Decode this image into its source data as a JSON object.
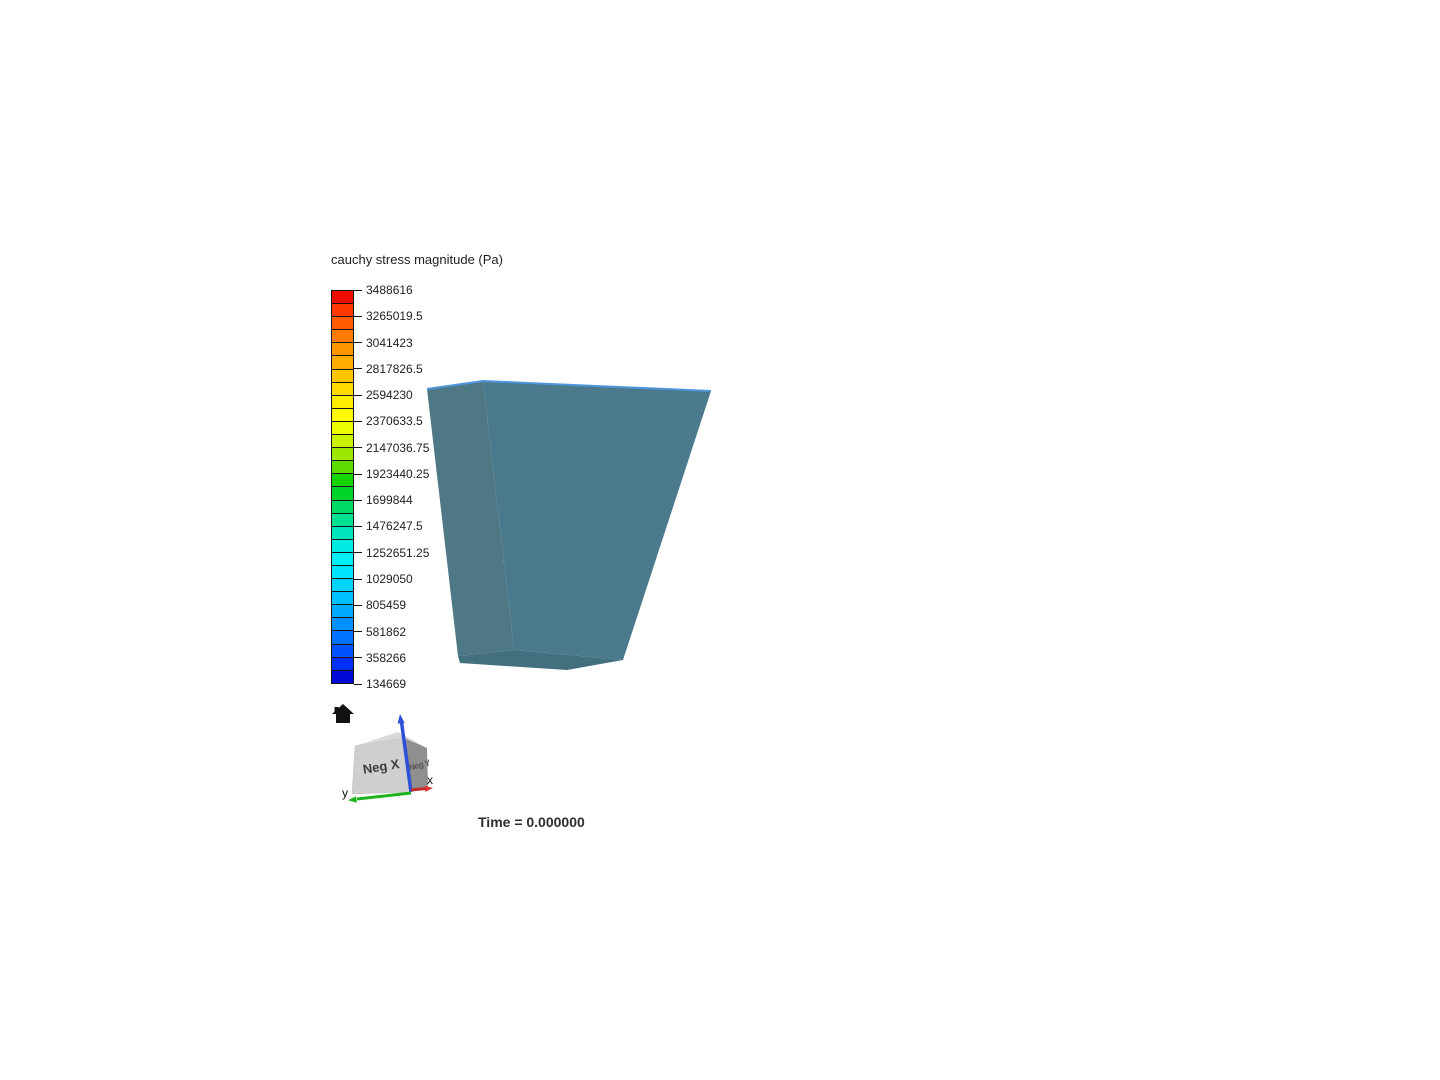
{
  "background": "#ffffff",
  "legend": {
    "title": "cauchy stress magnitude (Pa)",
    "tick_labels": [
      "3488616",
      "3265019.5",
      "3041423",
      "2817826.5",
      "2594230",
      "2370633.5",
      "2147036.75",
      "1923440.25",
      "1699844",
      "1476247.5",
      "1252651.25",
      "1029050",
      "805459",
      "581862",
      "358266",
      "134669"
    ],
    "segment_colors": [
      "#ee0e00",
      "#ff3800",
      "#ff5c00",
      "#ff7a00",
      "#ff9600",
      "#ffae00",
      "#ffc600",
      "#ffda00",
      "#ffec00",
      "#fffc00",
      "#eefc00",
      "#ccf200",
      "#9ce800",
      "#5cdc00",
      "#16d400",
      "#00d42a",
      "#00da64",
      "#00e092",
      "#00e6bc",
      "#00ece2",
      "#00f0f8",
      "#00e2ff",
      "#00d2ff",
      "#00c0ff",
      "#00aaff",
      "#0090ff",
      "#0072ff",
      "#0052ff",
      "#0030f6",
      "#0008d6"
    ]
  },
  "model": {
    "front_face_color": "#4a7a8c",
    "left_face_color": "#4e7886",
    "bottom_face_color": "#42707e",
    "top_edge_highlight_color": "#4e95da"
  },
  "orientation_widget": {
    "front_face_label": "Neg X",
    "right_face_label": "Neg Y",
    "x_axis_label": "x",
    "y_axis_label": "y",
    "x_axis_color": "#c03028",
    "y_axis_color": "#1db31d",
    "z_axis_color": "#2e4fd8"
  },
  "status": {
    "time_text": "Time = 0.000000"
  }
}
